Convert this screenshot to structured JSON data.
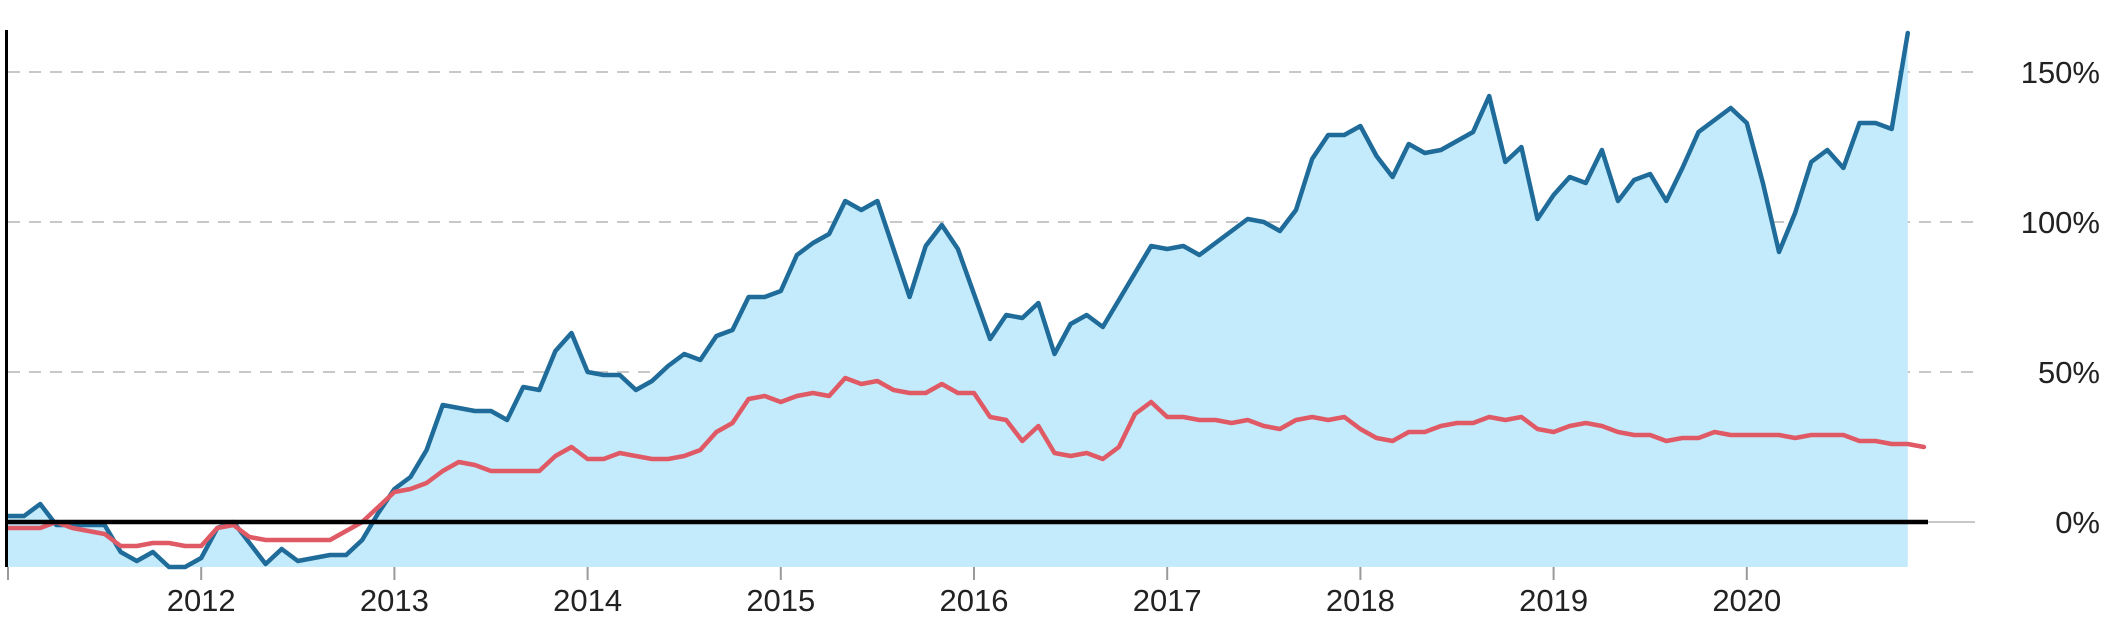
{
  "chart_data": {
    "type": "line",
    "title": "",
    "xlabel": "",
    "ylabel": "",
    "grid": true,
    "legend": "none",
    "x_ticks": [
      "2012",
      "2013",
      "2014",
      "2015",
      "2016",
      "2017",
      "2018",
      "2019",
      "2020"
    ],
    "y_ticks": [
      "0%",
      "50%",
      "100%",
      "150%"
    ],
    "xlim": [
      "2011-01",
      "2020-12"
    ],
    "ylim": [
      -15,
      165
    ],
    "colors": {
      "series_1": "#1f6b99",
      "series_2": "#e05a66",
      "fill": "#c3ebfb",
      "zero_line": "#000000"
    },
    "series": [
      {
        "x_start": "2011-01",
        "values": [
          2,
          2,
          6,
          -1,
          -1,
          -1,
          -1,
          -10,
          -13,
          -10,
          -15,
          -15,
          -12,
          -2,
          0,
          -7,
          -14,
          -9,
          -13,
          -12,
          -11,
          -11,
          -6,
          3,
          11,
          15,
          24,
          39,
          38,
          37,
          37,
          34,
          45,
          44,
          57,
          63,
          50,
          49,
          49,
          44,
          47,
          52,
          56,
          54,
          62,
          64,
          75,
          75,
          77,
          89,
          93,
          96,
          107,
          104,
          107,
          91,
          75,
          92,
          99,
          91,
          76,
          61,
          69,
          68,
          73,
          56,
          66,
          69,
          65,
          74,
          83,
          92,
          91,
          92,
          89,
          93,
          97,
          101,
          100,
          97,
          104,
          121,
          129,
          129,
          132,
          122,
          115,
          126,
          123,
          124,
          127,
          130,
          142,
          120,
          125,
          101,
          109,
          115,
          113,
          124,
          107,
          114,
          116,
          107,
          118,
          130,
          134,
          138,
          133,
          113,
          90,
          103,
          120,
          124,
          118,
          133,
          133,
          131,
          163
        ]
      },
      {
        "x_start": "2011-01",
        "values": [
          -2,
          -2,
          -2,
          0,
          -2,
          -3,
          -4,
          -8,
          -8,
          -7,
          -7,
          -8,
          -8,
          -2,
          -1,
          -5,
          -6,
          -6,
          -6,
          -6,
          -6,
          -3,
          0,
          5,
          10,
          11,
          13,
          17,
          20,
          19,
          17,
          17,
          17,
          17,
          22,
          25,
          21,
          21,
          23,
          22,
          21,
          21,
          22,
          24,
          30,
          33,
          41,
          42,
          40,
          42,
          43,
          42,
          48,
          46,
          47,
          44,
          43,
          43,
          46,
          43,
          43,
          35,
          34,
          27,
          32,
          23,
          22,
          23,
          21,
          25,
          36,
          40,
          35,
          35,
          34,
          34,
          33,
          34,
          32,
          31,
          34,
          35,
          34,
          35,
          31,
          28,
          27,
          30,
          30,
          32,
          33,
          33,
          35,
          34,
          35,
          31,
          30,
          32,
          33,
          32,
          30,
          29,
          29,
          27,
          28,
          28,
          30,
          29,
          29,
          29,
          29,
          28,
          29,
          29,
          29,
          27,
          27,
          26,
          26,
          25
        ]
      }
    ]
  }
}
